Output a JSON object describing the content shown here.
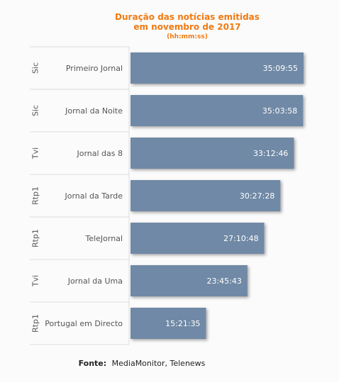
{
  "chart_data": {
    "type": "bar",
    "orientation": "horizontal",
    "title": "Duração das notícias emitidas",
    "title_line2": "em novembro de 2017",
    "subtitle": "(hh:mm:ss)",
    "source_label": "Fonte:",
    "source_text": "MediaMonitor, Telenews",
    "value_unit": "seconds",
    "groups": [
      "Sic",
      "Sic",
      "Tvi",
      "Rtp1",
      "Rtp1",
      "Tvi",
      "Rtp1"
    ],
    "categories": [
      "Primeiro Jornal",
      "Jornal da Noite",
      "Jornal das 8",
      "Jornal da Tarde",
      "TeleJornal",
      "Jornal da Uma",
      "Portugal em Directo"
    ],
    "value_labels": [
      "35:09:55",
      "35:03:58",
      "33:12:46",
      "30:27:28",
      "27:10:48",
      "23:45:43",
      "15:21:35"
    ],
    "values": [
      126595,
      126238,
      119566,
      109648,
      97848,
      85543,
      55295
    ],
    "colors": {
      "bar": "#7089a6",
      "title": "#f07a12",
      "value_label": "#ffffff",
      "axis_text": "#555555",
      "divider": "#dcdcdc"
    }
  }
}
